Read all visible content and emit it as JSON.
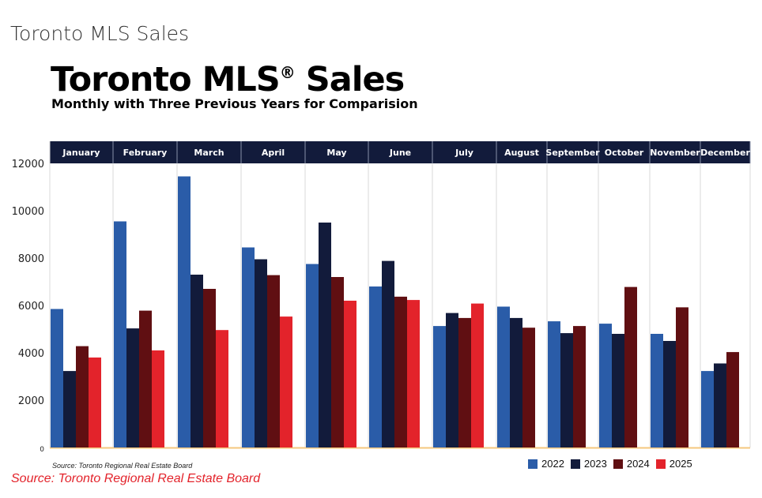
{
  "page_title": "Toronto MLS Sales",
  "source_caption": "Source: Toronto Regional Real Estate Board",
  "chart_data": {
    "type": "bar",
    "title": "Toronto MLS",
    "title_mark": "®",
    "title_suffix": "Sales",
    "subtitle": "Monthly with Three Previous Years for Comparision",
    "source": "Source: Toronto Regional Real Estate Board",
    "categories": [
      "January",
      "February",
      "March",
      "April",
      "May",
      "June",
      "July",
      "August",
      "September",
      "October",
      "November",
      "December"
    ],
    "ylim": [
      0,
      12000
    ],
    "yticks": [
      "0",
      "2000",
      "4000",
      "6000",
      "8000",
      "10000",
      "12000"
    ],
    "legend_position": "bottom-right",
    "series": [
      {
        "name": "2022",
        "color": "#2a5ca8",
        "values": [
          5850,
          9550,
          11450,
          8450,
          7750,
          6800,
          5130,
          5950,
          5330,
          5230,
          4800,
          3230
        ]
      },
      {
        "name": "2023",
        "color": "#121b3b",
        "values": [
          3230,
          5030,
          7300,
          7950,
          9500,
          7880,
          5680,
          5470,
          4830,
          4800,
          4500,
          3550
        ]
      },
      {
        "name": "2024",
        "color": "#600f12",
        "values": [
          4280,
          5780,
          6700,
          7280,
          7200,
          6370,
          5470,
          5060,
          5130,
          6780,
          5920,
          4030
        ]
      },
      {
        "name": "2025",
        "color": "#e3232b",
        "values": [
          3800,
          4100,
          4960,
          5530,
          6200,
          6230,
          6080,
          null,
          null,
          null,
          null,
          null
        ]
      }
    ]
  }
}
